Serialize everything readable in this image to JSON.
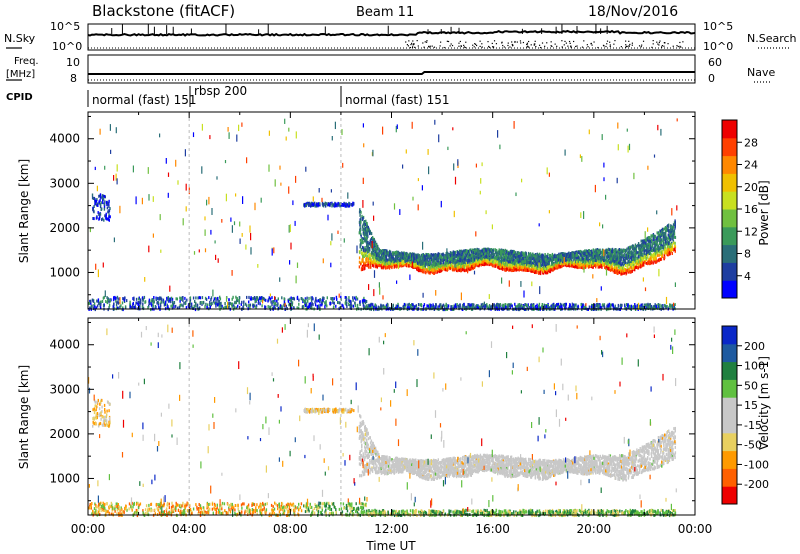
{
  "header": {
    "radar_title": "Blackstone (fitACF)",
    "beam": "Beam 11",
    "date": "18/Nov/2016"
  },
  "top_panels": {
    "nsky_label": "N.Sky",
    "nsearch_label": "N.Search",
    "nsky_ticks": [
      "10^5",
      "10^0"
    ],
    "nsearch_ticks": [
      "10^5",
      "10^0"
    ],
    "freq_label_1": "Freq.",
    "freq_label_2": "[MHz]",
    "freq_ticks": [
      "10",
      "8"
    ],
    "nave_label": "Nave",
    "nave_ticks": [
      "60",
      "0"
    ],
    "cpid_label": "CPID",
    "cpid_segments": [
      {
        "label": "normal (fast) 151",
        "start": 0,
        "end": 4.0
      },
      {
        "label": "rbsp 200",
        "start": 4.0,
        "end": 10.0
      },
      {
        "label": "normal (fast) 151",
        "start": 10.0,
        "end": 24.0
      }
    ]
  },
  "colors": {
    "power_scale": [
      "#0000ff",
      "#1e3ea0",
      "#2a6e78",
      "#3a9a5a",
      "#70c040",
      "#c8e020",
      "#f0c000",
      "#ff8800",
      "#ff4000",
      "#ee0000"
    ],
    "velocity_scale": [
      "#ee0000",
      "#ff6000",
      "#ff9a00",
      "#e8d060",
      "#c8c8c8",
      "#c8c8c8",
      "#60c040",
      "#208040",
      "#1e5aa0",
      "#0a28c8"
    ]
  },
  "chart_data": [
    {
      "type": "heatmap",
      "title": "Power",
      "colorbar_label": "Power [dB]",
      "colorbar_ticks": [
        "28",
        "24",
        "20",
        "16",
        "12",
        "8",
        "4"
      ],
      "ylabel": "Slant Range [km]",
      "yticks": [
        "1000",
        "2000",
        "3000",
        "4000"
      ],
      "ylim": [
        180,
        4600
      ],
      "xlim": [
        0,
        24
      ],
      "bands": [
        {
          "name": "ground scatter",
          "x": [
            0,
            24
          ],
          "range": [
            200,
            400
          ]
        },
        {
          "name": "patch A",
          "x": [
            0.2,
            0.8
          ],
          "range": [
            2200,
            2800
          ]
        },
        {
          "name": "patch B",
          "x": [
            8.5,
            10.5
          ],
          "range": [
            2500,
            2600
          ]
        },
        {
          "name": "main echo",
          "x": [
            10.7,
            23.2
          ],
          "range": [
            900,
            2500
          ]
        }
      ]
    },
    {
      "type": "heatmap",
      "title": "Velocity",
      "colorbar_label": "Velocity [m s-1]",
      "colorbar_ticks": [
        "200",
        "100",
        "50",
        "15",
        "-15",
        "-50",
        "-100",
        "-200"
      ],
      "ylabel": "Slant Range [km]",
      "yticks": [
        "1000",
        "2000",
        "3000",
        "4000"
      ],
      "ylim": [
        180,
        4600
      ],
      "xlim": [
        0,
        24
      ],
      "xlabel": "Time UT",
      "xticks": [
        "00:00",
        "04:00",
        "08:00",
        "12:00",
        "16:00",
        "20:00",
        "00:00"
      ]
    }
  ]
}
